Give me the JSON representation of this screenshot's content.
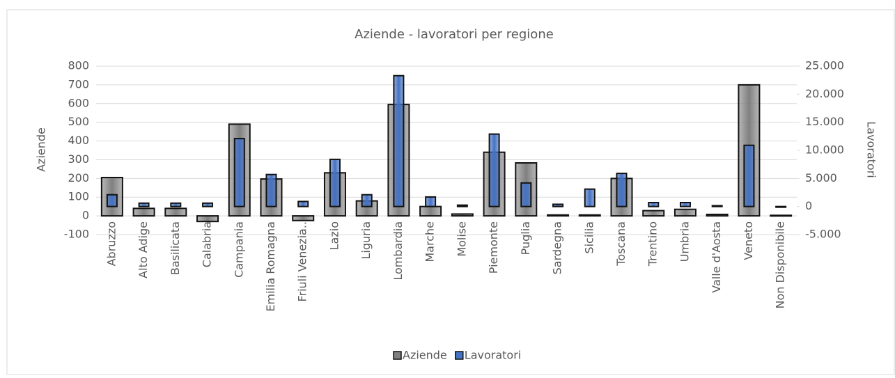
{
  "chart_data": {
    "type": "bar",
    "title": "Aziende - lavoratori per regione",
    "y_label": "Aziende",
    "y2_label": "Lavoratori",
    "categories": [
      "Abruzzo",
      "Alto Adige",
      "Basilicata",
      "Calabria",
      "Campania",
      "Emilia Romagna",
      "Friuli Venezia..",
      "Lazio",
      "Liguria",
      "Lombardia",
      "Marche",
      "Molise",
      "Piemonte",
      "Puglia",
      "Sardegna",
      "Sicilia",
      "Toscana",
      "Trentino",
      "Umbria",
      "Valle d'Aosta",
      "Veneto",
      "Non Disponibile"
    ],
    "series": [
      {
        "name": "Aziende",
        "color": "#808080",
        "axis": "y",
        "values": [
          205,
          40,
          40,
          -30,
          490,
          197,
          -25,
          230,
          80,
          595,
          50,
          10,
          340,
          283,
          5,
          5,
          200,
          28,
          35,
          8,
          700,
          3
        ]
      },
      {
        "name": "Lavoratori",
        "color": "#4472c4",
        "axis": "y2",
        "values": [
          2100,
          600,
          600,
          600,
          12100,
          5700,
          900,
          8400,
          2100,
          23300,
          1700,
          250,
          12900,
          4200,
          400,
          3100,
          5900,
          700,
          700,
          150,
          10900,
          0
        ]
      }
    ],
    "ylim": [
      -100,
      800
    ],
    "yticks": [
      -100,
      0,
      100,
      200,
      300,
      400,
      500,
      600,
      700,
      800
    ],
    "y2lim": [
      -5000,
      25000
    ],
    "y2ticks": [
      {
        "value": -5000,
        "label": "-5.000"
      },
      0,
      {
        "value": 5000,
        "label": "5.000"
      },
      {
        "value": 10000,
        "label": "10.000"
      },
      {
        "value": 15000,
        "label": "15.000"
      },
      {
        "value": 20000,
        "label": "20.000"
      },
      {
        "value": 25000,
        "label": "25.000"
      }
    ],
    "grid": true,
    "legend": "bottom"
  }
}
